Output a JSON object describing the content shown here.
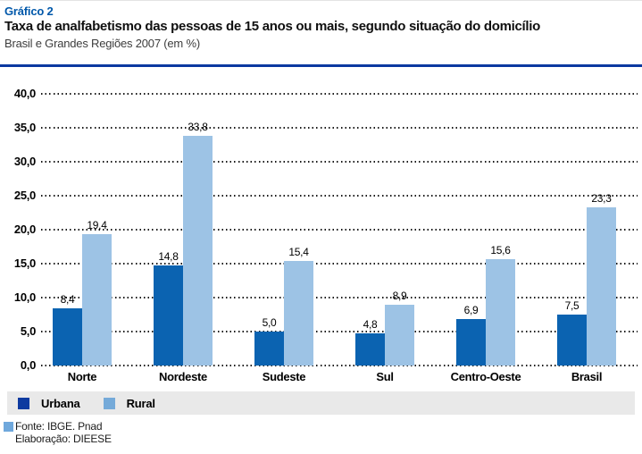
{
  "header": {
    "kicker": "Gráfico 2"
  },
  "chart_data": {
    "type": "bar",
    "title": "Taxa de analfabetismo das pessoas de 15 anos ou mais, segundo situação do domicílio",
    "subtitle": "Brasil e Grandes Regiões 2007 (em %)",
    "categories": [
      "Norte",
      "Nordeste",
      "Sudeste",
      "Sul",
      "Centro-Oeste",
      "Brasil"
    ],
    "series": [
      {
        "name": "Urbana",
        "values": [
          8.4,
          14.8,
          5.0,
          4.8,
          6.9,
          7.5
        ],
        "labels": [
          "8,4",
          "14,8",
          "5,0",
          "4,8",
          "6,9",
          "7,5"
        ],
        "color": "#0b63b1",
        "legend_color": "#0d3aa0"
      },
      {
        "name": "Rural",
        "values": [
          19.4,
          33.8,
          15.4,
          8.9,
          15.6,
          23.3
        ],
        "labels": [
          "19,4",
          "33,8",
          "15,4",
          "8,9",
          "15,6",
          "23,3"
        ],
        "color": "#9dc3e5",
        "legend_color": "#75aad9"
      }
    ],
    "ylim": [
      0,
      40
    ],
    "y_tick_step": 5,
    "y_ticks": [
      "0,0",
      "5,0",
      "10,0",
      "15,0",
      "20,0",
      "25,0",
      "30,0",
      "35,0",
      "40,0"
    ],
    "grid": "horizontal dotted",
    "legend_position": "bottom",
    "value_decimal_separator": ","
  },
  "colors": {
    "kicker": "#0058aa",
    "rule": "#0b39a0",
    "source_bullet": "#6fa8dc",
    "legend_band": "#e9e9e9"
  },
  "footer": {
    "source": "Fonte: IBGE. Pnad",
    "elaboration": "Elaboração: DIEESE"
  }
}
